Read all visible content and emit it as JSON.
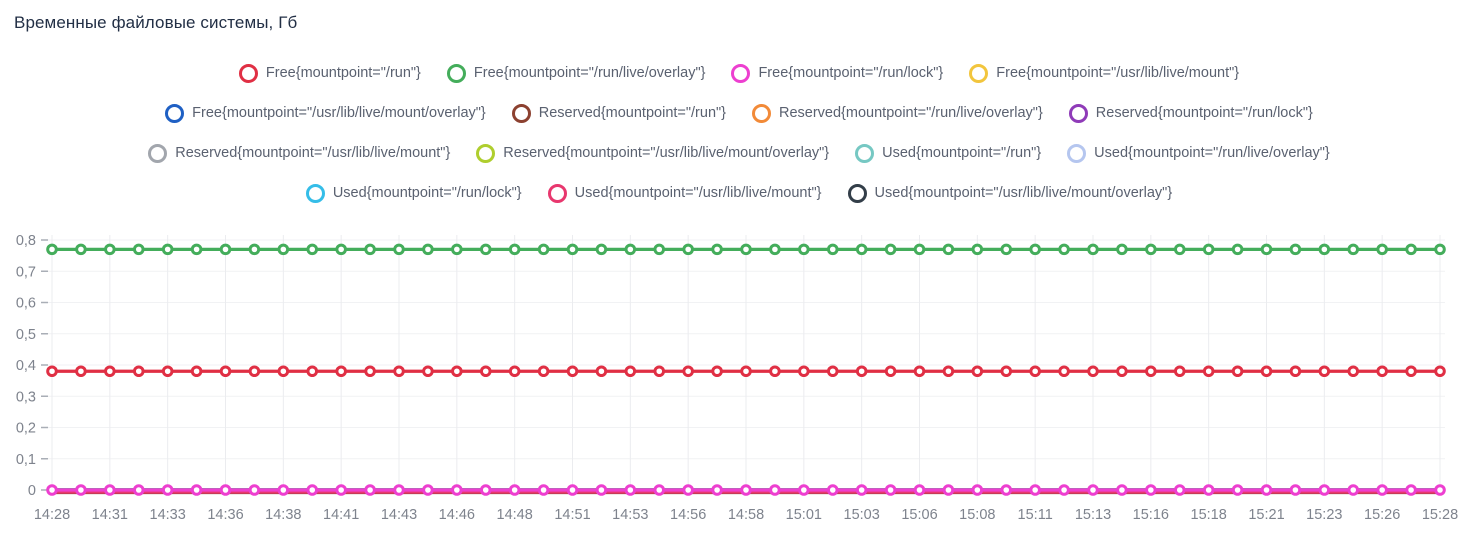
{
  "title": "Временные файловые системы, Гб",
  "chart_data": {
    "type": "line",
    "title": "Временные файловые системы, Гб",
    "x_tick_labels": [
      "14:28",
      "14:31",
      "14:33",
      "14:36",
      "14:38",
      "14:41",
      "14:43",
      "14:46",
      "14:48",
      "14:51",
      "14:53",
      "14:56",
      "14:58",
      "15:01",
      "15:03",
      "15:06",
      "15:08",
      "15:11",
      "15:13",
      "15:16",
      "15:18",
      "15:21",
      "15:23",
      "15:26",
      "15:28"
    ],
    "y_tick_labels": [
      "0",
      "0,1",
      "0,2",
      "0,3",
      "0,4",
      "0,5",
      "0,6",
      "0,7",
      "0,8"
    ],
    "y_tick_values": [
      0,
      0.1,
      0.2,
      0.3,
      0.4,
      0.5,
      0.6,
      0.7,
      0.8
    ],
    "ylim": [
      0,
      0.8
    ],
    "x_range": [
      "14:28",
      "15:28"
    ],
    "points_per_series": 49,
    "grid": true,
    "legend_position": "top-center",
    "marker_style": "open-circle",
    "series": [
      {
        "name": "Free{mountpoint=\"/run\"}",
        "color": "#e02f44",
        "value": 0.38
      },
      {
        "name": "Free{mountpoint=\"/run/live/overlay\"}",
        "color": "#44ad5b",
        "value": 0.77
      },
      {
        "name": "Free{mountpoint=\"/run/lock\"}",
        "color": "#ed3fd0",
        "value": 0
      },
      {
        "name": "Free{mountpoint=\"/usr/lib/live/mount\"}",
        "color": "#f2c53d",
        "value": 0
      },
      {
        "name": "Free{mountpoint=\"/usr/lib/live/mount/overlay\"}",
        "color": "#1f60c4",
        "value": 0
      },
      {
        "name": "Reserved{mountpoint=\"/run\"}",
        "color": "#8c4130",
        "value": 0
      },
      {
        "name": "Reserved{mountpoint=\"/run/live/overlay\"}",
        "color": "#f28a38",
        "value": 0
      },
      {
        "name": "Reserved{mountpoint=\"/run/lock\"}",
        "color": "#8f3bb8",
        "value": 0
      },
      {
        "name": "Reserved{mountpoint=\"/usr/lib/live/mount\"}",
        "color": "#a2a6ad",
        "value": 0
      },
      {
        "name": "Reserved{mountpoint=\"/usr/lib/live/mount/overlay\"}",
        "color": "#afce2e",
        "value": 0
      },
      {
        "name": "Used{mountpoint=\"/run\"}",
        "color": "#76c8c3",
        "value": 0
      },
      {
        "name": "Used{mountpoint=\"/run/live/overlay\"}",
        "color": "#b5c6ef",
        "value": 0
      },
      {
        "name": "Used{mountpoint=\"/run/lock\"}",
        "color": "#35bde8",
        "value": 0
      },
      {
        "name": "Used{mountpoint=\"/usr/lib/live/mount\"}",
        "color": "#e8376e",
        "value": 0
      },
      {
        "name": "Used{mountpoint=\"/usr/lib/live/mount/overlay\"}",
        "color": "#333e49",
        "value": 0
      }
    ],
    "colors": {
      "title_text": "#222f45",
      "legend_text": "#5a6170",
      "axis_text": "#7e838d",
      "grid_vertical": "#ebecef",
      "grid_horizontal": "#f1f2f4",
      "tick_dash": "#a9aeb6",
      "background": "#ffffff"
    }
  }
}
